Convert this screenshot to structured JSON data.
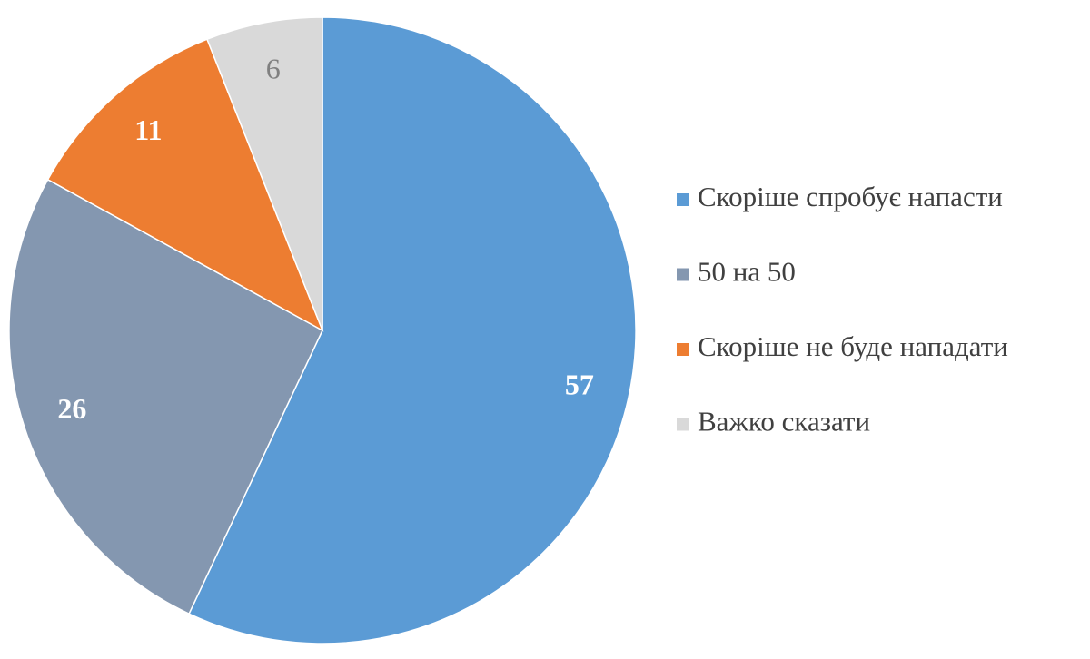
{
  "chart_data": {
    "type": "pie",
    "categories": [
      "Скоріше спробує напасти",
      "50 на 50",
      "Скоріше не буде нападати",
      "Важко сказати"
    ],
    "values": [
      57,
      26,
      11,
      6
    ],
    "colors": [
      "#5b9bd5",
      "#8497b0",
      "#ed7d31",
      "#d9d9d9"
    ],
    "label_colors": [
      "#ffffff",
      "#ffffff",
      "#ffffff",
      "#808080"
    ],
    "legend": "right"
  }
}
